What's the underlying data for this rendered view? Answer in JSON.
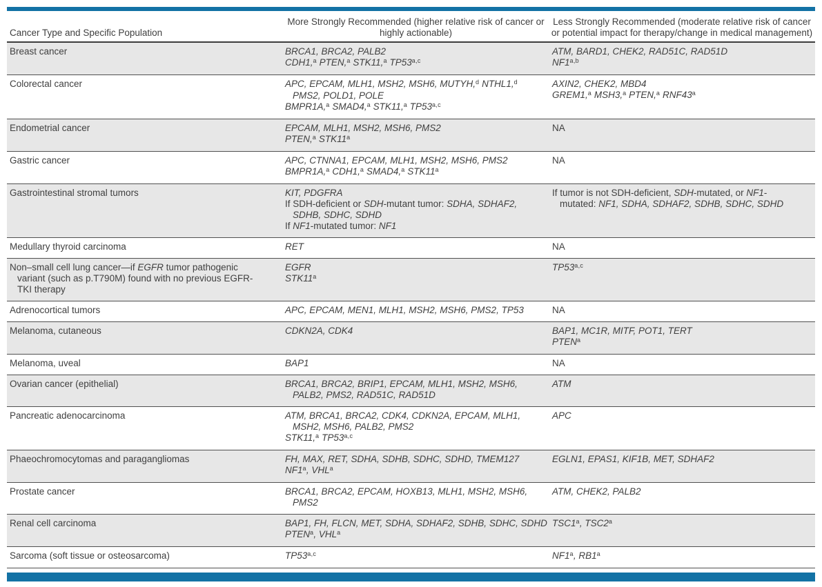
{
  "colors": {
    "accent_bar": "#1372a5",
    "row_stripe": "#e7e7e7",
    "text": "#3f3f3f",
    "rule_dark": "#3c3c3c",
    "rule_light": "#4f4f4f"
  },
  "table": {
    "columns": [
      {
        "label": "Cancer Type and Specific Population"
      },
      {
        "label": "More Strongly Recommended (higher relative risk of cancer or highly actionable)"
      },
      {
        "label": "Less Strongly Recommended (moderate relative risk of cancer or potential impact for therapy/change in medical management)"
      }
    ],
    "rows": [
      {
        "type": [
          {
            "seg": [
              {
                "t": "Breast cancer"
              }
            ]
          }
        ],
        "more": [
          {
            "seg": [
              {
                "t": "BRCA1, BRCA2, PALB2",
                "i": 1
              }
            ]
          },
          {
            "seg": [
              {
                "t": "CDH1,",
                "i": 1
              },
              {
                "t": "a",
                "s": 1
              },
              {
                "t": " PTEN,",
                "i": 1
              },
              {
                "t": "a",
                "s": 1
              },
              {
                "t": " STK11,",
                "i": 1
              },
              {
                "t": "a",
                "s": 1
              },
              {
                "t": " TP53",
                "i": 1
              },
              {
                "t": "a,c",
                "s": 1
              }
            ]
          }
        ],
        "less": [
          {
            "seg": [
              {
                "t": "ATM, BARD1, CHEK2, RAD51C, RAD51D",
                "i": 1
              }
            ]
          },
          {
            "seg": [
              {
                "t": "NF1",
                "i": 1
              },
              {
                "t": "a,b",
                "s": 1
              }
            ]
          }
        ]
      },
      {
        "type": [
          {
            "seg": [
              {
                "t": "Colorectal cancer"
              }
            ]
          }
        ],
        "more": [
          {
            "seg": [
              {
                "t": "APC, EPCAM, MLH1, MSH2, MSH6, MUTYH,",
                "i": 1
              },
              {
                "t": "d",
                "s": 1
              },
              {
                "t": " NTHL1,",
                "i": 1
              },
              {
                "t": "d",
                "s": 1
              }
            ]
          },
          {
            "ind": 1,
            "seg": [
              {
                "t": "PMS2, POLD1, POLE",
                "i": 1
              }
            ]
          },
          {
            "seg": [
              {
                "t": "BMPR1A,",
                "i": 1
              },
              {
                "t": "a",
                "s": 1
              },
              {
                "t": " SMAD4,",
                "i": 1
              },
              {
                "t": "a",
                "s": 1
              },
              {
                "t": " STK11,",
                "i": 1
              },
              {
                "t": "a",
                "s": 1
              },
              {
                "t": " TP53",
                "i": 1
              },
              {
                "t": "a,c",
                "s": 1
              }
            ]
          }
        ],
        "less": [
          {
            "seg": [
              {
                "t": "AXIN2, CHEK2, MBD4",
                "i": 1
              }
            ]
          },
          {
            "seg": [
              {
                "t": "GREM1,",
                "i": 1
              },
              {
                "t": "a",
                "s": 1
              },
              {
                "t": " MSH3,",
                "i": 1
              },
              {
                "t": "a",
                "s": 1
              },
              {
                "t": " PTEN,",
                "i": 1
              },
              {
                "t": "a",
                "s": 1
              },
              {
                "t": " RNF43",
                "i": 1
              },
              {
                "t": "a",
                "s": 1
              }
            ]
          }
        ]
      },
      {
        "type": [
          {
            "seg": [
              {
                "t": "Endometrial cancer"
              }
            ]
          }
        ],
        "more": [
          {
            "seg": [
              {
                "t": "EPCAM, MLH1, MSH2, MSH6, PMS2",
                "i": 1
              }
            ]
          },
          {
            "seg": [
              {
                "t": "PTEN,",
                "i": 1
              },
              {
                "t": "a",
                "s": 1
              },
              {
                "t": " STK11",
                "i": 1
              },
              {
                "t": "a",
                "s": 1
              }
            ]
          }
        ],
        "less": [
          {
            "seg": [
              {
                "t": "NA"
              }
            ]
          }
        ]
      },
      {
        "type": [
          {
            "seg": [
              {
                "t": "Gastric cancer"
              }
            ]
          }
        ],
        "more": [
          {
            "seg": [
              {
                "t": "APC, CTNNA1, EPCAM, MLH1, MSH2, MSH6, PMS2",
                "i": 1
              }
            ]
          },
          {
            "seg": [
              {
                "t": "BMPR1A,",
                "i": 1
              },
              {
                "t": "a",
                "s": 1
              },
              {
                "t": " CDH1,",
                "i": 1
              },
              {
                "t": "a",
                "s": 1
              },
              {
                "t": " SMAD4,",
                "i": 1
              },
              {
                "t": "a",
                "s": 1
              },
              {
                "t": " STK11",
                "i": 1
              },
              {
                "t": "a",
                "s": 1
              }
            ]
          }
        ],
        "less": [
          {
            "seg": [
              {
                "t": "NA"
              }
            ]
          }
        ]
      },
      {
        "type": [
          {
            "seg": [
              {
                "t": "Gastrointestinal stromal tumors"
              }
            ]
          }
        ],
        "more": [
          {
            "seg": [
              {
                "t": "KIT, PDGFRA",
                "i": 1
              }
            ]
          },
          {
            "seg": [
              {
                "t": "If SDH-deficient or "
              },
              {
                "t": "SDH",
                "i": 1
              },
              {
                "t": "-mutant tumor: "
              },
              {
                "t": "SDHA, SDHAF2,",
                "i": 1
              }
            ]
          },
          {
            "ind": 1,
            "seg": [
              {
                "t": "SDHB, SDHC, SDHD",
                "i": 1
              }
            ]
          },
          {
            "seg": [
              {
                "t": "If "
              },
              {
                "t": "NF1",
                "i": 1
              },
              {
                "t": "-mutated tumor: "
              },
              {
                "t": "NF1",
                "i": 1
              }
            ]
          }
        ],
        "less": [
          {
            "seg": [
              {
                "t": "If tumor is not SDH-deficient, "
              },
              {
                "t": "SDH",
                "i": 1
              },
              {
                "t": "-mutated, or "
              },
              {
                "t": "NF1",
                "i": 1
              },
              {
                "t": "-"
              }
            ]
          },
          {
            "ind": 1,
            "seg": [
              {
                "t": "mutated: "
              },
              {
                "t": "NF1, SDHA, SDHAF2, SDHB, SDHC, SDHD",
                "i": 1
              }
            ]
          }
        ]
      },
      {
        "type": [
          {
            "seg": [
              {
                "t": "Medullary thyroid carcinoma"
              }
            ]
          }
        ],
        "more": [
          {
            "seg": [
              {
                "t": "RET",
                "i": 1
              }
            ]
          }
        ],
        "less": [
          {
            "seg": [
              {
                "t": "NA"
              }
            ]
          }
        ]
      },
      {
        "type": [
          {
            "seg": [
              {
                "t": "Non–small cell lung cancer—if "
              },
              {
                "t": "EGFR",
                "i": 1
              },
              {
                "t": " tumor pathogenic"
              }
            ]
          },
          {
            "ind": 1,
            "seg": [
              {
                "t": "variant (such as p.T790M) found with no previous EGFR-"
              }
            ]
          },
          {
            "ind": 1,
            "seg": [
              {
                "t": "TKI therapy"
              }
            ]
          }
        ],
        "more": [
          {
            "seg": [
              {
                "t": "EGFR",
                "i": 1
              }
            ]
          },
          {
            "seg": [
              {
                "t": "STK11",
                "i": 1
              },
              {
                "t": "a",
                "s": 1
              }
            ]
          }
        ],
        "less": [
          {
            "seg": [
              {
                "t": "TP53",
                "i": 1
              },
              {
                "t": "a,c",
                "s": 1
              }
            ]
          }
        ]
      },
      {
        "type": [
          {
            "seg": [
              {
                "t": "Adrenocortical tumors"
              }
            ]
          }
        ],
        "more": [
          {
            "seg": [
              {
                "t": "APC, EPCAM, MEN1, MLH1, MSH2, MSH6, PMS2, TP53",
                "i": 1
              }
            ]
          }
        ],
        "less": [
          {
            "seg": [
              {
                "t": "NA"
              }
            ]
          }
        ]
      },
      {
        "type": [
          {
            "seg": [
              {
                "t": "Melanoma, cutaneous"
              }
            ]
          }
        ],
        "more": [
          {
            "seg": [
              {
                "t": "CDKN2A, CDK4",
                "i": 1
              }
            ]
          }
        ],
        "less": [
          {
            "seg": [
              {
                "t": "BAP1, MC1R, MITF, POT1, TERT",
                "i": 1
              }
            ]
          },
          {
            "seg": [
              {
                "t": "PTEN",
                "i": 1
              },
              {
                "t": "a",
                "s": 1
              }
            ]
          }
        ]
      },
      {
        "type": [
          {
            "seg": [
              {
                "t": "Melanoma, uveal"
              }
            ]
          }
        ],
        "more": [
          {
            "seg": [
              {
                "t": "BAP1",
                "i": 1
              }
            ]
          }
        ],
        "less": [
          {
            "seg": [
              {
                "t": "NA"
              }
            ]
          }
        ]
      },
      {
        "type": [
          {
            "seg": [
              {
                "t": "Ovarian cancer (epithelial)"
              }
            ]
          }
        ],
        "more": [
          {
            "seg": [
              {
                "t": "BRCA1, BRCA2, BRIP1, EPCAM, MLH1, MSH2, MSH6,",
                "i": 1
              }
            ]
          },
          {
            "ind": 1,
            "seg": [
              {
                "t": "PALB2, PMS2, RAD51C, RAD51D",
                "i": 1
              }
            ]
          }
        ],
        "less": [
          {
            "seg": [
              {
                "t": "ATM",
                "i": 1
              }
            ]
          }
        ]
      },
      {
        "type": [
          {
            "seg": [
              {
                "t": "Pancreatic adenocarcinoma"
              }
            ]
          }
        ],
        "more": [
          {
            "seg": [
              {
                "t": "ATM, BRCA1, BRCA2, CDK4, CDKN2A, EPCAM, MLH1,",
                "i": 1
              }
            ]
          },
          {
            "ind": 1,
            "seg": [
              {
                "t": "MSH2, MSH6, PALB2, PMS2",
                "i": 1
              }
            ]
          },
          {
            "seg": [
              {
                "t": "STK11,",
                "i": 1
              },
              {
                "t": "a",
                "s": 1
              },
              {
                "t": " TP53",
                "i": 1
              },
              {
                "t": "a,c",
                "s": 1
              }
            ]
          }
        ],
        "less": [
          {
            "seg": [
              {
                "t": "APC",
                "i": 1
              }
            ]
          }
        ]
      },
      {
        "type": [
          {
            "seg": [
              {
                "t": "Phaeochromocytomas and paragangliomas"
              }
            ]
          }
        ],
        "more": [
          {
            "seg": [
              {
                "t": "FH, MAX, RET, SDHA, SDHB, SDHC, SDHD, TMEM127",
                "i": 1
              }
            ]
          },
          {
            "seg": [
              {
                "t": "NF1",
                "i": 1
              },
              {
                "t": "a",
                "s": 1
              },
              {
                "t": ", VHL",
                "i": 1
              },
              {
                "t": "a",
                "s": 1
              }
            ]
          }
        ],
        "less": [
          {
            "seg": [
              {
                "t": "EGLN1, EPAS1, KIF1B, MET, SDHAF2",
                "i": 1
              }
            ]
          }
        ]
      },
      {
        "type": [
          {
            "seg": [
              {
                "t": "Prostate cancer"
              }
            ]
          }
        ],
        "more": [
          {
            "seg": [
              {
                "t": "BRCA1, BRCA2, EPCAM, HOXB13, MLH1, MSH2, MSH6,",
                "i": 1
              }
            ]
          },
          {
            "ind": 1,
            "seg": [
              {
                "t": "PMS2",
                "i": 1
              }
            ]
          }
        ],
        "less": [
          {
            "seg": [
              {
                "t": "ATM, CHEK2, PALB2",
                "i": 1
              }
            ]
          }
        ]
      },
      {
        "type": [
          {
            "seg": [
              {
                "t": "Renal cell carcinoma"
              }
            ]
          }
        ],
        "more": [
          {
            "seg": [
              {
                "t": "BAP1, FH, FLCN, MET, SDHA, SDHAF2, SDHB, SDHC, SDHD",
                "i": 1
              }
            ]
          },
          {
            "seg": [
              {
                "t": "PTEN",
                "i": 1
              },
              {
                "t": "a",
                "s": 1
              },
              {
                "t": ", VHL",
                "i": 1
              },
              {
                "t": "a",
                "s": 1
              }
            ]
          }
        ],
        "less": [
          {
            "seg": [
              {
                "t": "TSC1",
                "i": 1
              },
              {
                "t": "a",
                "s": 1
              },
              {
                "t": ", TSC2",
                "i": 1
              },
              {
                "t": "a",
                "s": 1
              }
            ]
          }
        ]
      },
      {
        "type": [
          {
            "seg": [
              {
                "t": "Sarcoma (soft tissue or osteosarcoma)"
              }
            ]
          }
        ],
        "more": [
          {
            "seg": [
              {
                "t": "TP53",
                "i": 1
              },
              {
                "t": "a,c",
                "s": 1
              }
            ]
          }
        ],
        "less": [
          {
            "seg": [
              {
                "t": "NF1",
                "i": 1
              },
              {
                "t": "a",
                "s": 1
              },
              {
                "t": ", RB1",
                "i": 1
              },
              {
                "t": "a",
                "s": 1
              }
            ]
          }
        ]
      }
    ]
  }
}
